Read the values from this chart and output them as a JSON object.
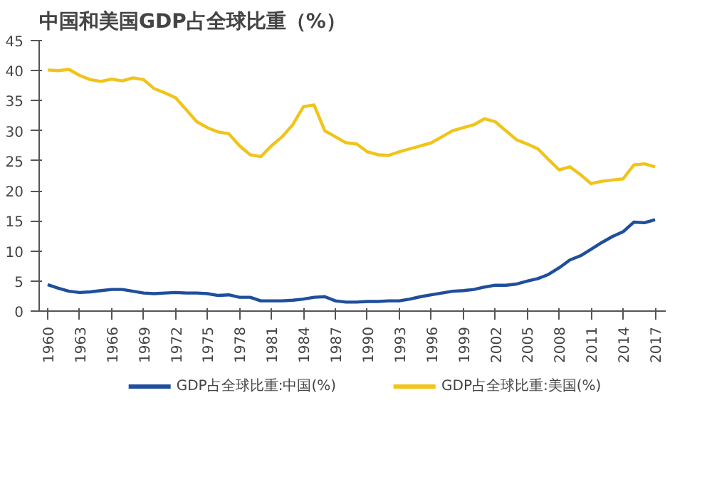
{
  "chart_data": {
    "type": "line",
    "title": "中国和美国GDP占全球比重（%）",
    "x": [
      1960,
      1961,
      1962,
      1963,
      1964,
      1965,
      1966,
      1967,
      1968,
      1969,
      1970,
      1971,
      1972,
      1973,
      1974,
      1975,
      1976,
      1977,
      1978,
      1979,
      1980,
      1981,
      1982,
      1983,
      1984,
      1985,
      1986,
      1987,
      1988,
      1989,
      1990,
      1991,
      1992,
      1993,
      1994,
      1995,
      1996,
      1997,
      1998,
      1999,
      2000,
      2001,
      2002,
      2003,
      2004,
      2005,
      2006,
      2007,
      2008,
      2009,
      2010,
      2011,
      2012,
      2013,
      2014,
      2015,
      2016,
      2017
    ],
    "series": [
      {
        "name": "GDP占全球比重:中国(%)",
        "color": "#1f4e9c",
        "values": [
          4.4,
          3.8,
          3.3,
          3.1,
          3.2,
          3.4,
          3.6,
          3.6,
          3.3,
          3.0,
          2.9,
          3.0,
          3.1,
          3.0,
          3.0,
          2.9,
          2.6,
          2.7,
          2.3,
          2.3,
          1.7,
          1.7,
          1.7,
          1.8,
          2.0,
          2.3,
          2.4,
          1.7,
          1.5,
          1.5,
          1.6,
          1.6,
          1.7,
          1.7,
          2.0,
          2.4,
          2.7,
          3.0,
          3.3,
          3.4,
          3.6,
          4.0,
          4.3,
          4.3,
          4.5,
          5.0,
          5.4,
          6.1,
          7.2,
          8.5,
          9.2,
          10.3,
          11.4,
          12.4,
          13.2,
          14.8,
          14.7,
          15.2
        ]
      },
      {
        "name": "GDP占全球比重:美国(%)",
        "color": "#f0c419",
        "values": [
          40.1,
          40.0,
          40.2,
          39.2,
          38.5,
          38.2,
          38.6,
          38.3,
          38.8,
          38.5,
          37.0,
          36.3,
          35.5,
          33.5,
          31.5,
          30.5,
          29.8,
          29.5,
          27.5,
          26.0,
          25.7,
          27.5,
          29.0,
          31.0,
          34.0,
          34.3,
          30.0,
          29.0,
          28.0,
          27.8,
          26.5,
          26.0,
          25.9,
          26.5,
          27.0,
          27.5,
          28.0,
          29.0,
          30.0,
          30.5,
          31.0,
          32.0,
          31.5,
          30.0,
          28.5,
          27.8,
          27.0,
          25.2,
          23.5,
          24.0,
          22.7,
          21.2,
          21.6,
          21.8,
          22.0,
          24.3,
          24.5,
          24.0
        ]
      }
    ],
    "xlim": [
      1959.2,
      2018
    ],
    "xticks": [
      1960,
      1963,
      1966,
      1969,
      1972,
      1975,
      1978,
      1981,
      1984,
      1987,
      1990,
      1993,
      1996,
      1999,
      2002,
      2005,
      2008,
      2011,
      2014,
      2017
    ],
    "ylim": [
      0,
      45
    ],
    "yticks": [
      0,
      5,
      10,
      15,
      20,
      25,
      30,
      35,
      40,
      45
    ],
    "grid": false,
    "legend": "bottom",
    "marker": "none",
    "line_style": "solid"
  }
}
